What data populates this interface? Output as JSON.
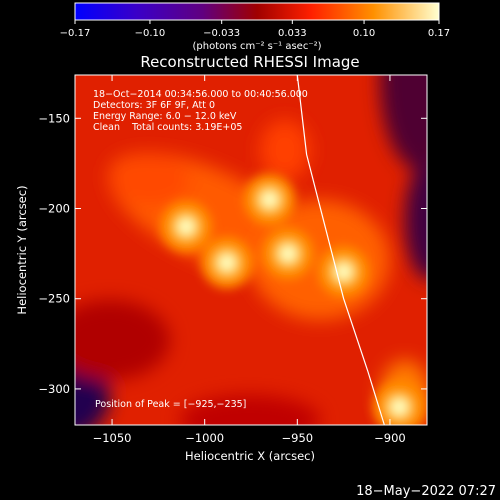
{
  "colorbar": {
    "ticks": [
      "−0.17",
      "−0.10",
      "−0.033",
      "0.033",
      "0.10",
      "0.17"
    ],
    "tick_values": [
      -0.17,
      -0.1,
      -0.033,
      0.033,
      0.1,
      0.17
    ],
    "range": [
      -0.17,
      0.17
    ],
    "units_label": "(photons cm⁻² s⁻¹ asec⁻²)"
  },
  "chart_data": {
    "type": "heatmap",
    "title": "Reconstructed RHESSI Image",
    "xlabel": "Heliocentric X (arcsec)",
    "ylabel": "Heliocentric Y (arcsec)",
    "xlim": [
      -1070,
      -880
    ],
    "ylim": [
      -320,
      -126
    ],
    "xticks": [
      -1050,
      -1000,
      -950,
      -900
    ],
    "xtick_labels": [
      "−1050",
      "−1000",
      "−950",
      "−900"
    ],
    "yticks": [
      -300,
      -250,
      -200,
      -150
    ],
    "ytick_labels": [
      "−300",
      "−250",
      "−200",
      "−150"
    ],
    "annotations": [
      "18−Oct−2014 00:34:56.000 to 00:40:56.000",
      "Detectors: 3F 6F 9F, Att 0",
      "Energy Range: 6.0 − 12.0 keV",
      "Clean    Total counts: 3.19E+05"
    ],
    "peak_label": "Position of Peak = [−925,−235]",
    "peak_position": [
      -925,
      -235
    ],
    "sources": [
      {
        "x": -925,
        "y": -235
      },
      {
        "x": -1010,
        "y": -210
      },
      {
        "x": -988,
        "y": -230
      },
      {
        "x": -965,
        "y": -195
      },
      {
        "x": -955,
        "y": -225
      },
      {
        "x": -895,
        "y": -310
      }
    ],
    "limb_curve": [
      {
        "x": -950,
        "y": -126
      },
      {
        "x": -945,
        "y": -170
      },
      {
        "x": -935,
        "y": -210
      },
      {
        "x": -925,
        "y": -250
      },
      {
        "x": -912,
        "y": -290
      },
      {
        "x": -903,
        "y": -320
      }
    ]
  },
  "timestamp": "18−May−2022 07:27"
}
